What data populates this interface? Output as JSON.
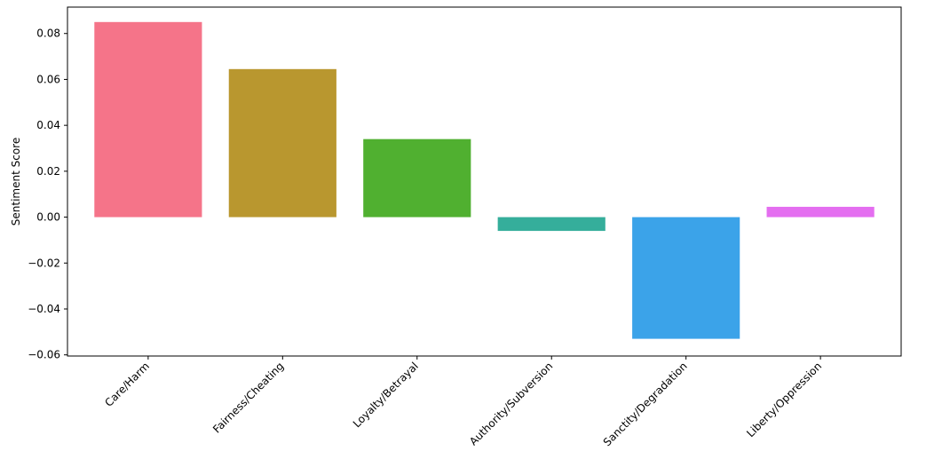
{
  "chart_data": {
    "type": "bar",
    "title": "",
    "xlabel": "",
    "ylabel": "Sentiment Score",
    "categories": [
      "Care/Harm",
      "Fairness/Cheating",
      "Loyalty/Betrayal",
      "Authority/Subversion",
      "Sanctity/Degradation",
      "Liberty/Oppression"
    ],
    "values": [
      0.085,
      0.0645,
      0.034,
      -0.006,
      -0.053,
      0.0045
    ],
    "colors": [
      "#f57489",
      "#b9972f",
      "#50b030",
      "#35ae9b",
      "#3ba3e9",
      "#e46ef0"
    ],
    "ylim": [
      -0.0605,
      0.0915
    ],
    "yticks": [
      -0.06,
      -0.04,
      -0.02,
      0.0,
      0.02,
      0.04,
      0.06,
      0.08
    ],
    "ytick_labels": [
      "−0.06",
      "−0.04",
      "−0.02",
      "0.00",
      "0.02",
      "0.04",
      "0.06",
      "0.08"
    ],
    "grid": false,
    "legend": "none"
  }
}
